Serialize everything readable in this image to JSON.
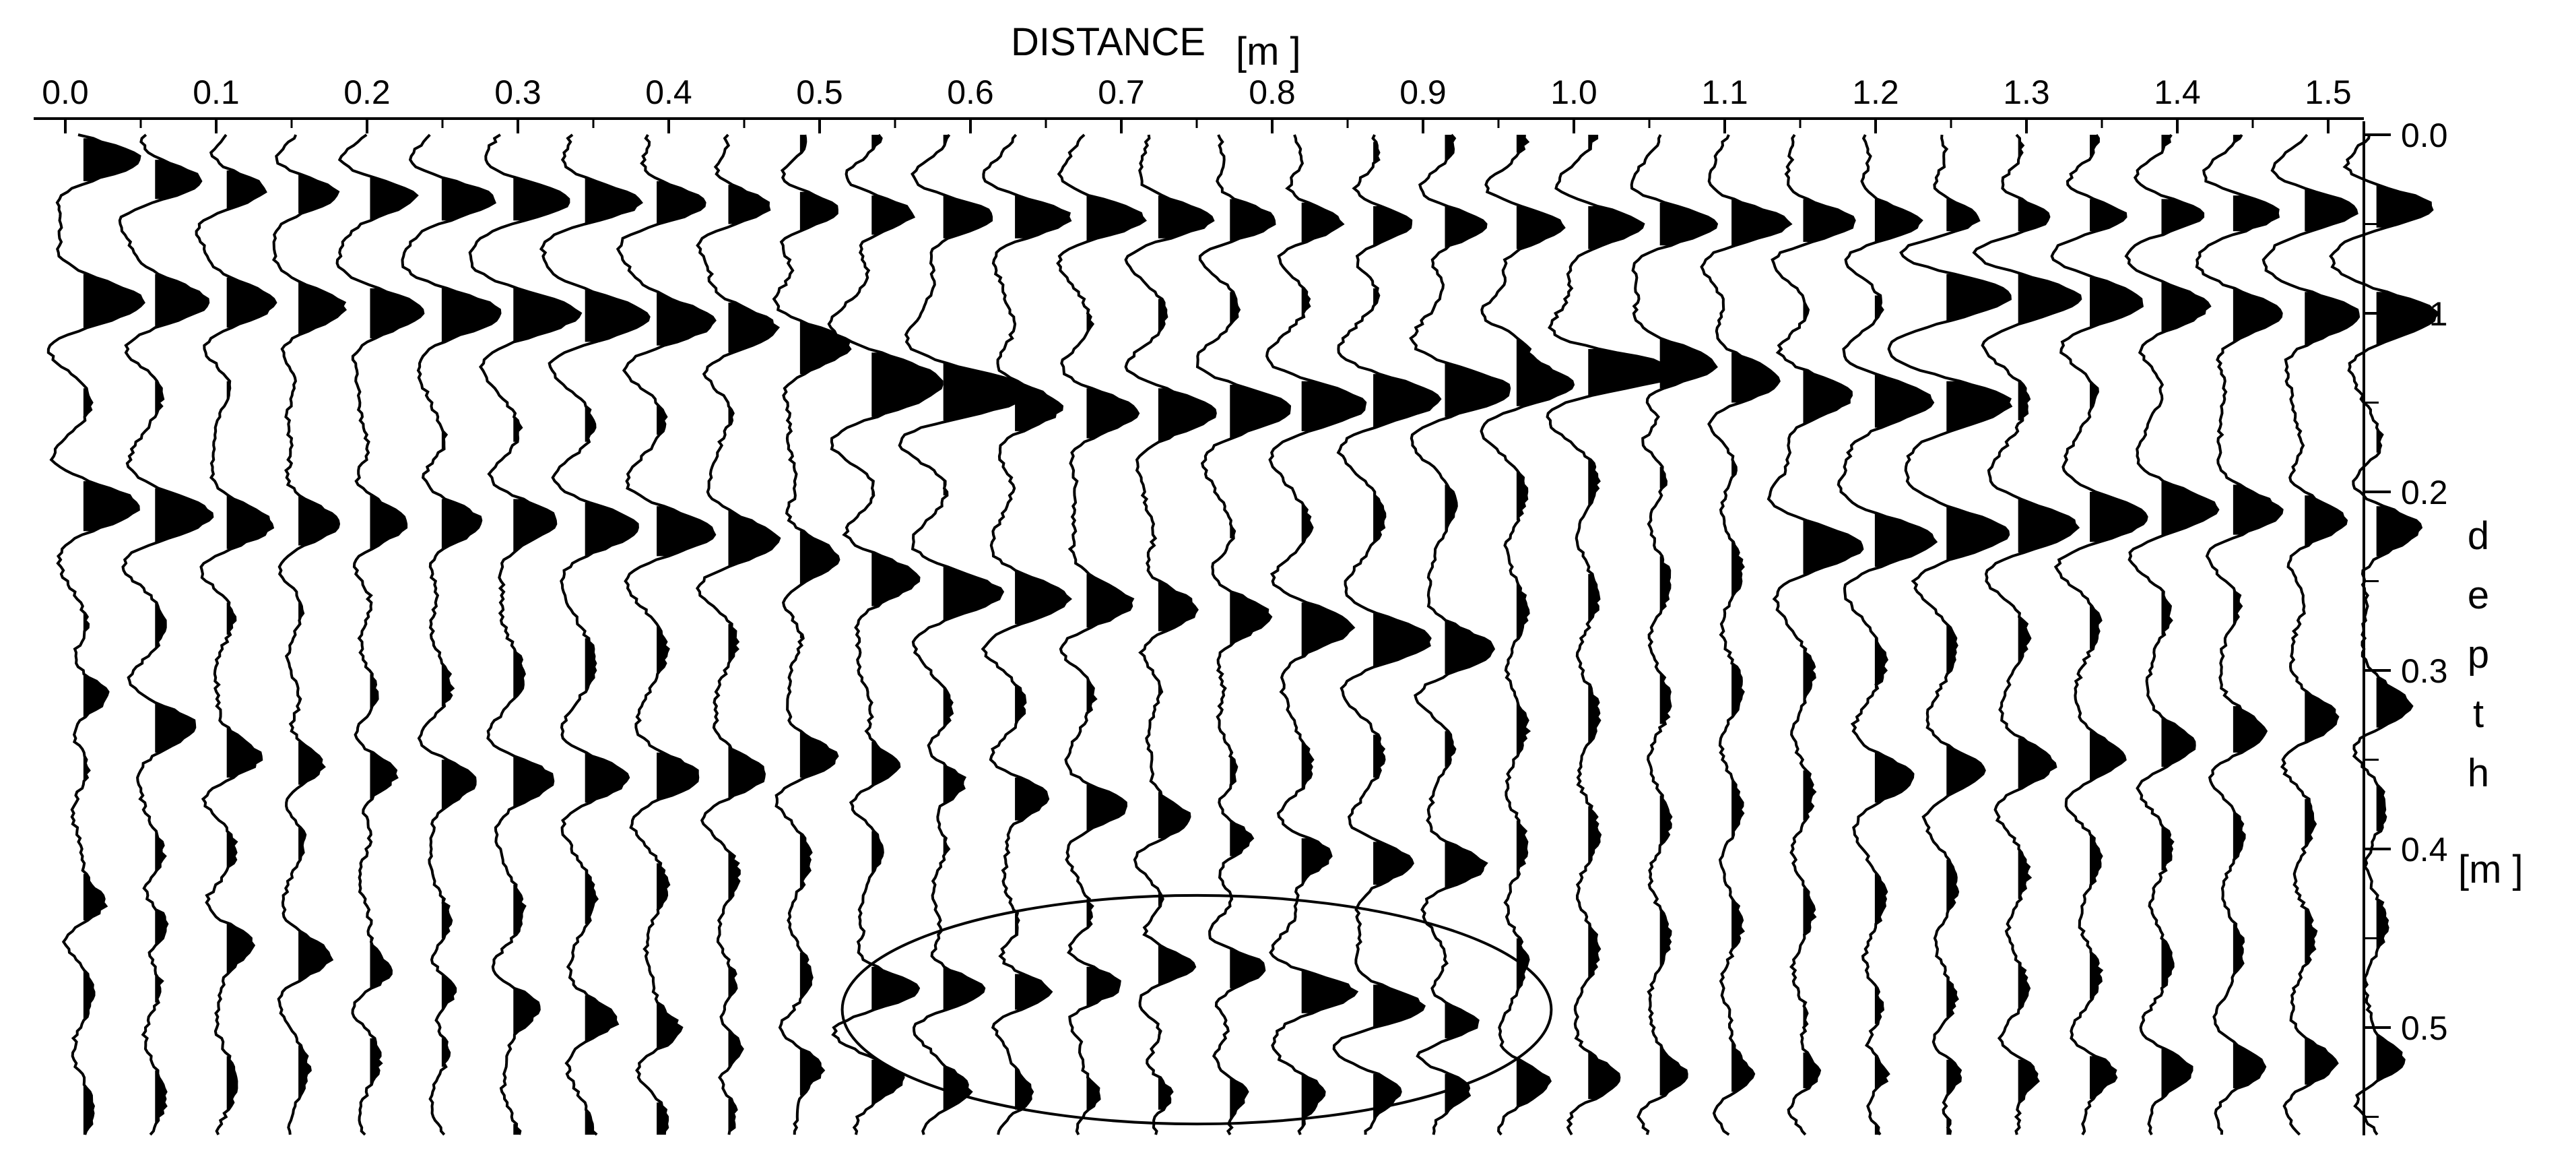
{
  "chart_data": {
    "type": "line",
    "chart_kind": "GPR wiggle trace section (variable area, black-filled positive lobes)",
    "xlabel": "DISTANCE",
    "xunit": "[m ]",
    "ylabel_letters": [
      "d",
      "e",
      "p",
      "t",
      "h"
    ],
    "yunit": "[m ]",
    "x_axis_position": "top",
    "y_axis_position": "right",
    "xlim": [
      0.0,
      1.54
    ],
    "ylim": [
      0.0,
      0.56
    ],
    "y_inverted": true,
    "x_ticks": [
      "0.0",
      "0.1",
      "0.2",
      "0.3",
      "0.4",
      "0.5",
      "0.6",
      "0.7",
      "0.8",
      "0.9",
      "1.0",
      "1.1",
      "1.2",
      "1.3",
      "1.4",
      "1.5"
    ],
    "y_ticks": [
      "0.0",
      "0.1",
      "0.2",
      "0.3",
      "0.4",
      "0.5"
    ],
    "grid": false,
    "trace_count": 33,
    "trace_spacing_m": 0.0475,
    "wiggle_amplitude_m": 0.037,
    "annotation": {
      "shape": "ellipse",
      "center_x_m": 0.75,
      "center_y_m": 0.49,
      "radius_x_m": 0.235,
      "radius_y_m": 0.064
    },
    "reflections": [
      {
        "name": "surface",
        "points": [
          [
            0.0,
            0.01
          ],
          [
            0.07,
            0.03
          ],
          [
            0.4,
            0.04
          ],
          [
            0.8,
            0.05
          ],
          [
            1.2,
            0.05
          ],
          [
            1.54,
            0.04
          ]
        ],
        "amplitude": 0.85,
        "width": 0.018
      },
      {
        "name": "upper-direct-wave",
        "points": [
          [
            0.0,
            0.095
          ],
          [
            0.1,
            0.095
          ],
          [
            0.3,
            0.1
          ],
          [
            0.45,
            0.11
          ],
          [
            0.5,
            0.12
          ],
          [
            0.56,
            0.14
          ]
        ],
        "amplitude": 1.0,
        "width": 0.022
      },
      {
        "name": "mid-reflector",
        "points": [
          [
            0.55,
            0.15
          ],
          [
            0.7,
            0.155
          ],
          [
            0.85,
            0.15
          ],
          [
            0.95,
            0.14
          ],
          [
            1.05,
            0.13
          ],
          [
            1.15,
            0.145
          ],
          [
            1.25,
            0.15
          ]
        ],
        "amplitude": 1.0,
        "width": 0.022
      },
      {
        "name": "mid-reflector-2",
        "points": [
          [
            0.98,
            0.115
          ],
          [
            1.06,
            0.16
          ]
        ],
        "amplitude": 0.55,
        "width": 0.015
      },
      {
        "name": "right-shallow",
        "points": [
          [
            1.25,
            0.09
          ],
          [
            1.35,
            0.095
          ],
          [
            1.45,
            0.1
          ],
          [
            1.54,
            0.1
          ]
        ],
        "amplitude": 1.0,
        "width": 0.022
      },
      {
        "name": "second-reflector",
        "points": [
          [
            0.0,
            0.205
          ],
          [
            0.1,
            0.22
          ],
          [
            0.3,
            0.215
          ],
          [
            0.42,
            0.225
          ],
          [
            0.5,
            0.24
          ],
          [
            0.6,
            0.26
          ],
          [
            0.8,
            0.27
          ],
          [
            0.9,
            0.29
          ]
        ],
        "amplitude": 0.85,
        "width": 0.022
      },
      {
        "name": "right-second",
        "points": [
          [
            1.15,
            0.23
          ],
          [
            1.3,
            0.22
          ],
          [
            1.4,
            0.21
          ],
          [
            1.54,
            0.22
          ]
        ],
        "amplitude": 0.9,
        "width": 0.022
      },
      {
        "name": "deep-left",
        "points": [
          [
            0.0,
            0.31
          ],
          [
            0.06,
            0.33
          ],
          [
            0.1,
            0.35
          ],
          [
            0.25,
            0.36
          ],
          [
            0.45,
            0.36
          ]
        ],
        "amplitude": 0.6,
        "width": 0.02
      },
      {
        "name": "deep-middle",
        "points": [
          [
            0.5,
            0.35
          ],
          [
            0.7,
            0.38
          ],
          [
            0.8,
            0.4
          ],
          [
            0.9,
            0.41
          ]
        ],
        "amplitude": 0.55,
        "width": 0.018
      },
      {
        "name": "deep-right",
        "points": [
          [
            1.2,
            0.36
          ],
          [
            1.35,
            0.35
          ],
          [
            1.54,
            0.32
          ]
        ],
        "amplitude": 0.5,
        "width": 0.02
      },
      {
        "name": "anomaly-hyperbola",
        "points": [
          [
            0.56,
            0.48
          ],
          [
            0.66,
            0.48
          ],
          [
            0.75,
            0.46
          ],
          [
            0.82,
            0.48
          ],
          [
            0.92,
            0.5
          ]
        ],
        "amplitude": 0.8,
        "width": 0.018
      },
      {
        "name": "bottom",
        "points": [
          [
            0.0,
            0.43
          ],
          [
            0.2,
            0.47
          ],
          [
            0.6,
            0.54
          ],
          [
            1.0,
            0.53
          ],
          [
            1.54,
            0.52
          ]
        ],
        "amplitude": 0.4,
        "width": 0.018
      }
    ],
    "colors": {
      "ink": "#000000",
      "background": "#ffffff"
    }
  }
}
